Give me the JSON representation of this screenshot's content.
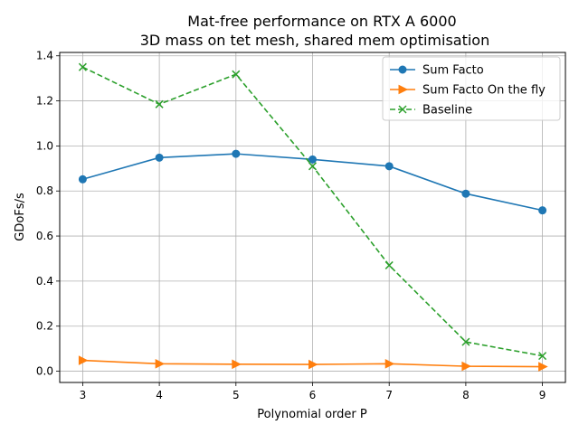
{
  "chart_data": {
    "type": "line",
    "title": "Mat-free performance on RTX A 6000",
    "subtitle": "3D mass on tet mesh, shared mem optimisation",
    "xlabel": "Polynomial order P",
    "ylabel": "GDoFs/s",
    "x": [
      3,
      4,
      5,
      6,
      7,
      8,
      9
    ],
    "xlim": [
      2.7,
      9.3
    ],
    "ylim": [
      -0.05,
      1.415
    ],
    "xticks": [
      "3",
      "4",
      "5",
      "6",
      "7",
      "8",
      "9"
    ],
    "yticks": [
      "0.0",
      "0.2",
      "0.4",
      "0.6",
      "0.8",
      "1.0",
      "1.2",
      "1.4"
    ],
    "grid": true,
    "legend_position": "top-right",
    "series": [
      {
        "name": "Sum Facto",
        "color": "#1f77b4",
        "marker": "circle",
        "linestyle": "solid",
        "values": [
          0.852,
          0.948,
          0.965,
          0.94,
          0.91,
          0.788,
          0.714
        ]
      },
      {
        "name": "Sum Facto On the fly",
        "color": "#ff7f0e",
        "marker": "triangle-right",
        "linestyle": "solid",
        "values": [
          0.048,
          0.033,
          0.031,
          0.03,
          0.033,
          0.022,
          0.02
        ]
      },
      {
        "name": "Baseline",
        "color": "#2ca02c",
        "marker": "x",
        "linestyle": "dashed",
        "values": [
          1.35,
          1.185,
          1.318,
          0.91,
          0.47,
          0.13,
          0.068
        ]
      }
    ]
  }
}
